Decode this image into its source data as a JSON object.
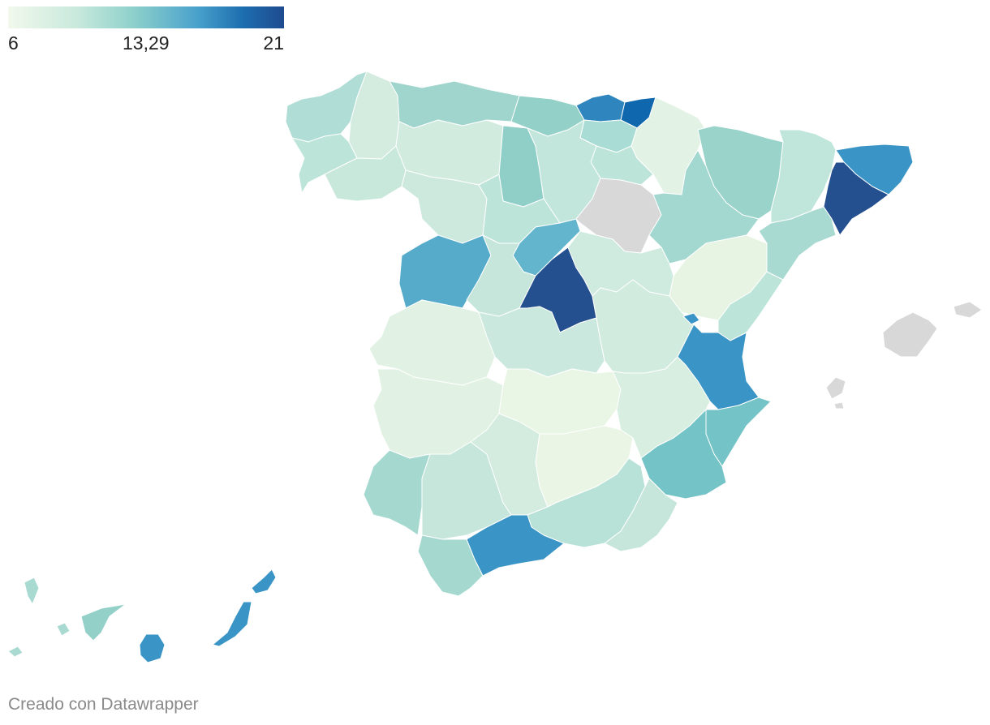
{
  "legend": {
    "min_label": "6",
    "mid_label": "13,29",
    "max_label": "21",
    "colors": [
      "#f1f9ec",
      "#c8e9dc",
      "#8fd1cb",
      "#4aa3cc",
      "#1c6eaf",
      "#1f4b8f"
    ]
  },
  "colors": {
    "no_data": "#d9d9d9",
    "border": "#ffffff",
    "darkest": "#24508f",
    "dark": "#1c6eaf",
    "mid_dark": "#3a95c6",
    "mid": "#56abcb",
    "mid_light": "#74c3c6",
    "light": "#a8dad2",
    "lighter": "#c6e6dc",
    "lightest": "#e6f4e6"
  },
  "credit": "Creado con Datawrapper"
}
